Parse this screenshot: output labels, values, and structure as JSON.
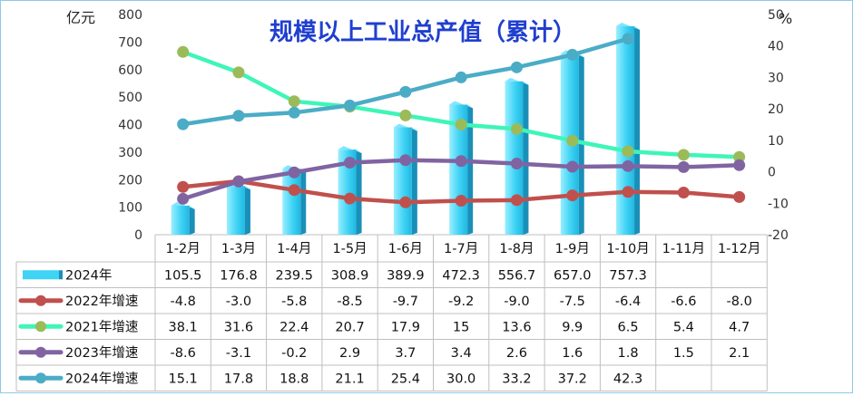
{
  "chart_data": {
    "type": "bar",
    "title": "规模以上工业总产值（累计）",
    "ylabel_left": "亿元",
    "ylabel_right": "%",
    "ylim_left": [
      0,
      800
    ],
    "yticks_left": [
      "0",
      "100",
      "200",
      "300",
      "400",
      "500",
      "600",
      "700",
      "800"
    ],
    "ylim_right": [
      -20,
      50
    ],
    "yticks_right": [
      "-20",
      "-10",
      "0",
      "10",
      "20",
      "30",
      "40",
      "50"
    ],
    "categories": [
      "1-2月",
      "1-3月",
      "1-4月",
      "1-5月",
      "1-6月",
      "1-7月",
      "1-8月",
      "1-9月",
      "1-10月",
      "1-11月",
      "1-12月"
    ],
    "series": [
      {
        "name": "2024年",
        "type": "bar",
        "axis": "left",
        "color": "#3fd3f5",
        "values": [
          105.5,
          176.8,
          239.5,
          308.9,
          389.9,
          472.3,
          556.7,
          657.0,
          757.3,
          null,
          null
        ],
        "labels": [
          "105.5",
          "176.8",
          "239.5",
          "308.9",
          "389.9",
          "472.3",
          "556.7",
          "657.0",
          "757.3",
          "",
          ""
        ]
      },
      {
        "name": "2022年增速",
        "type": "line",
        "axis": "right",
        "color": "#c0504d",
        "values": [
          -4.8,
          -3.0,
          -5.8,
          -8.5,
          -9.7,
          -9.2,
          -9.0,
          -7.5,
          -6.4,
          -6.6,
          -8.0
        ],
        "labels": [
          "-4.8",
          "-3.0",
          "-5.8",
          "-8.5",
          "-9.7",
          "-9.2",
          "-9.0",
          "-7.5",
          "-6.4",
          "-6.6",
          "-8.0"
        ]
      },
      {
        "name": "2021年增速",
        "type": "line",
        "axis": "right",
        "color": "#3ff5b8",
        "marker_color": "#9bbb59",
        "values": [
          38.1,
          31.6,
          22.4,
          20.7,
          17.9,
          15,
          13.6,
          9.9,
          6.5,
          5.4,
          4.7
        ],
        "labels": [
          "38.1",
          "31.6",
          "22.4",
          "20.7",
          "17.9",
          "15",
          "13.6",
          "9.9",
          "6.5",
          "5.4",
          "4.7"
        ]
      },
      {
        "name": "2023年增速",
        "type": "line",
        "axis": "right",
        "color": "#8064a2",
        "values": [
          -8.6,
          -3.1,
          -0.2,
          2.9,
          3.7,
          3.4,
          2.6,
          1.6,
          1.8,
          1.5,
          2.1
        ],
        "labels": [
          "-8.6",
          "-3.1",
          "-0.2",
          "2.9",
          "3.7",
          "3.4",
          "2.6",
          "1.6",
          "1.8",
          "1.5",
          "2.1"
        ]
      },
      {
        "name": "2024年增速",
        "type": "line",
        "axis": "right",
        "color": "#4bacc6",
        "values": [
          15.1,
          17.8,
          18.8,
          21.1,
          25.4,
          30.0,
          33.2,
          37.2,
          42.3,
          null,
          null
        ],
        "labels": [
          "15.1",
          "17.8",
          "18.8",
          "21.1",
          "25.4",
          "30.0",
          "33.2",
          "37.2",
          "42.3",
          "",
          ""
        ]
      }
    ],
    "grid": false,
    "legend": "data-table"
  }
}
